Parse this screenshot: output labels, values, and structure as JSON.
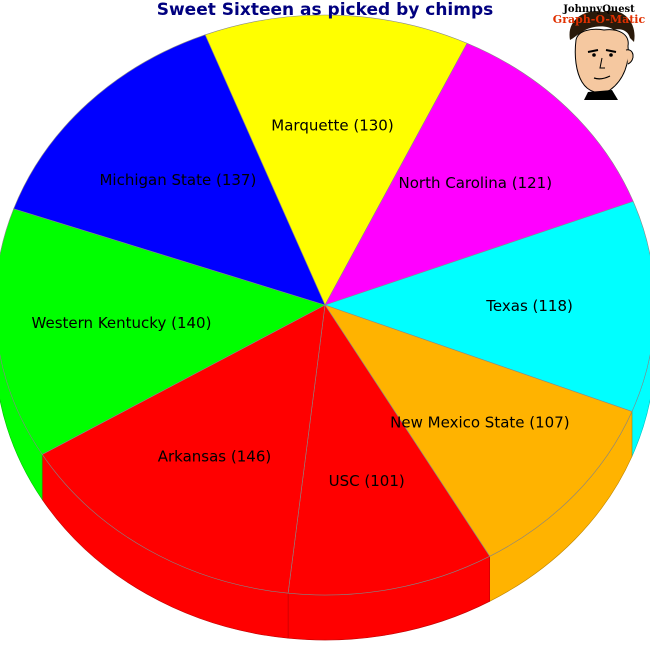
{
  "chart_data": {
    "type": "pie",
    "title": "Sweet Sixteen as picked by chimps",
    "slices": [
      {
        "label": "Marquette (130)",
        "value": 130,
        "color": "#ffff00"
      },
      {
        "label": "North Carolina (121)",
        "value": 121,
        "color": "#ff00ff"
      },
      {
        "label": "Texas (118)",
        "value": 118,
        "color": "#00ffff"
      },
      {
        "label": "New Mexico State (107)",
        "value": 107,
        "color": "#ffb300"
      },
      {
        "label": "USC (101)",
        "value": 101,
        "color": "#ff0000"
      },
      {
        "label": "Arkansas (146)",
        "value": 146,
        "color": "#ff0000"
      },
      {
        "label": "Western Kentucky (140)",
        "value": 140,
        "color": "#00ff00"
      },
      {
        "label": "Michigan State (137)",
        "value": 137,
        "color": "#0000ff"
      }
    ],
    "style": "3d"
  },
  "logo": {
    "line1": "JohnnyQuest",
    "line2": "Graph-O-Matic"
  }
}
